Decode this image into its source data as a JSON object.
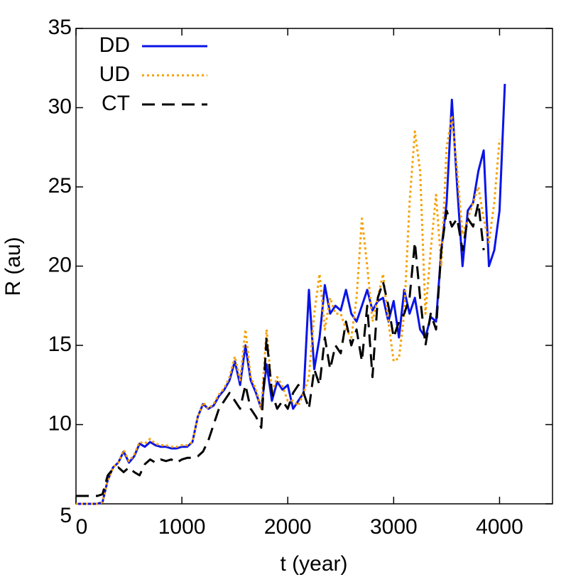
{
  "chart_data": {
    "type": "line",
    "xlabel": "t (year)",
    "ylabel": "R (au)",
    "x": [
      0,
      50,
      100,
      150,
      200,
      250,
      300,
      350,
      400,
      450,
      500,
      550,
      600,
      650,
      700,
      750,
      800,
      850,
      900,
      950,
      1000,
      1050,
      1100,
      1150,
      1200,
      1250,
      1300,
      1350,
      1400,
      1450,
      1500,
      1550,
      1600,
      1650,
      1700,
      1750,
      1800,
      1850,
      1900,
      1950,
      2000,
      2050,
      2100,
      2150,
      2200,
      2250,
      2300,
      2350,
      2400,
      2450,
      2500,
      2550,
      2600,
      2650,
      2700,
      2750,
      2800,
      2850,
      2900,
      2950,
      3000,
      3050,
      3100,
      3150,
      3200,
      3250,
      3300,
      3350,
      3400,
      3450,
      3500,
      3550,
      3600,
      3650,
      3700,
      3750,
      3800,
      3850,
      3900,
      3950,
      4000,
      4050
    ],
    "series": [
      {
        "name": "DD",
        "color": "#0a14e6",
        "dash": "solid",
        "values": [
          5,
          5,
          5,
          5,
          5,
          5.1,
          6.5,
          7.3,
          7.6,
          8.3,
          7.6,
          8.0,
          8.8,
          8.6,
          8.9,
          8.7,
          8.6,
          8.6,
          8.5,
          8.5,
          8.6,
          8.6,
          8.9,
          10.5,
          11.3,
          11,
          11.2,
          11.8,
          12.2,
          12.8,
          14,
          12.5,
          15,
          12.8,
          12,
          11,
          13.8,
          11.5,
          12.7,
          12.2,
          12.5,
          11,
          11.5,
          12,
          18.5,
          13.5,
          15.5,
          18.8,
          17,
          17.5,
          17.2,
          18.5,
          17,
          16.5,
          17.5,
          18.5,
          17.2,
          17.8,
          18,
          16.5,
          17.8,
          15.5,
          18.5,
          17,
          18,
          16,
          15.5,
          16.8,
          16.5,
          21,
          24,
          30.5,
          25,
          20,
          23.5,
          24,
          26,
          27.3,
          20,
          21,
          23.5,
          31.5
        ]
      },
      {
        "name": "UD",
        "color": "#f5a000",
        "dash": "dotted",
        "values": [
          5,
          5,
          5,
          5,
          5,
          5.1,
          6.5,
          7.3,
          7.6,
          8.4,
          7.7,
          8.1,
          8.9,
          8.8,
          9.1,
          8.8,
          8.7,
          8.7,
          8.6,
          8.6,
          8.7,
          8.7,
          8.9,
          10.5,
          11.4,
          11,
          11.3,
          11.9,
          12.3,
          13,
          14.3,
          12.8,
          16,
          13,
          12.2,
          11,
          16,
          12,
          13,
          12.4,
          11.5,
          11.5,
          11.2,
          12,
          13,
          17,
          19.5,
          16,
          18,
          17,
          17,
          16,
          15.5,
          18,
          23,
          20,
          16.5,
          18,
          19.5,
          16.5,
          14,
          14.2,
          17,
          24,
          28.5,
          26,
          17,
          21,
          24.5,
          20,
          27.5,
          29.5,
          26,
          22,
          23,
          24,
          25,
          23,
          21.5,
          24,
          28,
          null
        ]
      },
      {
        "name": "CT",
        "color": "#000000",
        "dash": "dashed",
        "values": [
          5.5,
          5.5,
          5.5,
          5.5,
          5.5,
          5.6,
          6.8,
          7.2,
          7.3,
          7.0,
          7.3,
          7.0,
          6.8,
          7.5,
          7.8,
          7.6,
          7.8,
          7.7,
          7.8,
          7.6,
          7.8,
          7.9,
          7.9,
          8,
          8.3,
          9,
          10,
          11,
          11.5,
          12,
          11.5,
          11,
          12.5,
          11,
          10.5,
          9.8,
          15.5,
          12,
          11,
          11.5,
          11,
          12,
          12.5,
          12,
          11,
          13.5,
          12.5,
          15.5,
          13.5,
          15,
          14.5,
          16.5,
          15,
          16,
          14,
          17.5,
          13,
          18,
          19,
          17.5,
          15.5,
          16.5,
          17,
          18,
          21.5,
          18,
          15,
          17,
          16,
          21,
          23.5,
          22.5,
          23,
          21,
          23,
          22.5,
          24,
          21,
          null,
          null,
          null,
          null
        ]
      }
    ],
    "xlim": [
      0,
      4500
    ],
    "xticks": [
      0,
      1000,
      2000,
      3000,
      4000
    ],
    "ylim": [
      5,
      35
    ],
    "yticks": [
      5,
      10,
      15,
      20,
      25,
      30,
      35
    ],
    "legend": "upper left",
    "grid": false
  }
}
